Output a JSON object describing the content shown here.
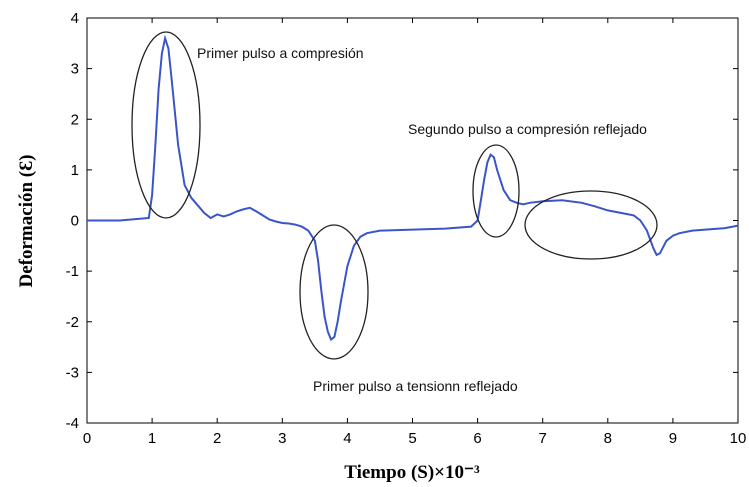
{
  "chart_data": {
    "type": "line",
    "title": "",
    "xlabel": "Tiempo (S)×10⁻³",
    "ylabel": "Deformación (Ɛ)",
    "xlim": [
      0,
      10
    ],
    "ylim": [
      -4,
      4
    ],
    "xticks": [
      "0",
      "1",
      "2",
      "3",
      "4",
      "5",
      "6",
      "7",
      "8",
      "9",
      "10"
    ],
    "yticks": [
      "4",
      "3",
      "2",
      "1",
      "0",
      "-1",
      "-2",
      "-3",
      "-4"
    ],
    "grid": false,
    "series": [
      {
        "name": "",
        "color": "#3a55c8",
        "x": [
          0,
          0.5,
          0.95,
          1.0,
          1.05,
          1.1,
          1.15,
          1.2,
          1.25,
          1.3,
          1.4,
          1.5,
          1.6,
          1.7,
          1.8,
          1.9,
          2.0,
          2.1,
          2.2,
          2.3,
          2.4,
          2.5,
          2.6,
          2.7,
          2.8,
          2.9,
          3.0,
          3.1,
          3.2,
          3.3,
          3.4,
          3.5,
          3.55,
          3.6,
          3.65,
          3.7,
          3.75,
          3.8,
          3.85,
          3.9,
          4.0,
          4.1,
          4.2,
          4.3,
          4.5,
          5.0,
          5.5,
          5.9,
          6.0,
          6.05,
          6.1,
          6.15,
          6.2,
          6.25,
          6.3,
          6.4,
          6.5,
          6.6,
          6.7,
          6.8,
          7.0,
          7.3,
          7.6,
          7.8,
          8.0,
          8.2,
          8.4,
          8.5,
          8.6,
          8.7,
          8.75,
          8.8,
          8.9,
          9.0,
          9.1,
          9.3,
          9.5,
          9.8,
          10.0
        ],
        "y": [
          0.0,
          0.0,
          0.05,
          0.5,
          1.5,
          2.6,
          3.3,
          3.6,
          3.4,
          2.8,
          1.5,
          0.7,
          0.45,
          0.3,
          0.15,
          0.05,
          0.12,
          0.08,
          0.12,
          0.18,
          0.22,
          0.25,
          0.18,
          0.1,
          0.02,
          -0.02,
          -0.05,
          -0.06,
          -0.08,
          -0.12,
          -0.2,
          -0.4,
          -0.8,
          -1.4,
          -1.9,
          -2.2,
          -2.35,
          -2.3,
          -2.0,
          -1.6,
          -0.9,
          -0.5,
          -0.32,
          -0.25,
          -0.2,
          -0.18,
          -0.16,
          -0.12,
          0.0,
          0.4,
          0.8,
          1.15,
          1.3,
          1.25,
          1.0,
          0.6,
          0.4,
          0.35,
          0.32,
          0.35,
          0.38,
          0.4,
          0.35,
          0.28,
          0.2,
          0.15,
          0.1,
          0.0,
          -0.2,
          -0.55,
          -0.68,
          -0.65,
          -0.4,
          -0.3,
          -0.25,
          -0.2,
          -0.18,
          -0.15,
          -0.1
        ]
      }
    ],
    "annotations": [
      "Primer pulso a compresión",
      "Segundo pulso a compresión reflejado",
      "Primer pulso a tensionn reflejado"
    ]
  }
}
